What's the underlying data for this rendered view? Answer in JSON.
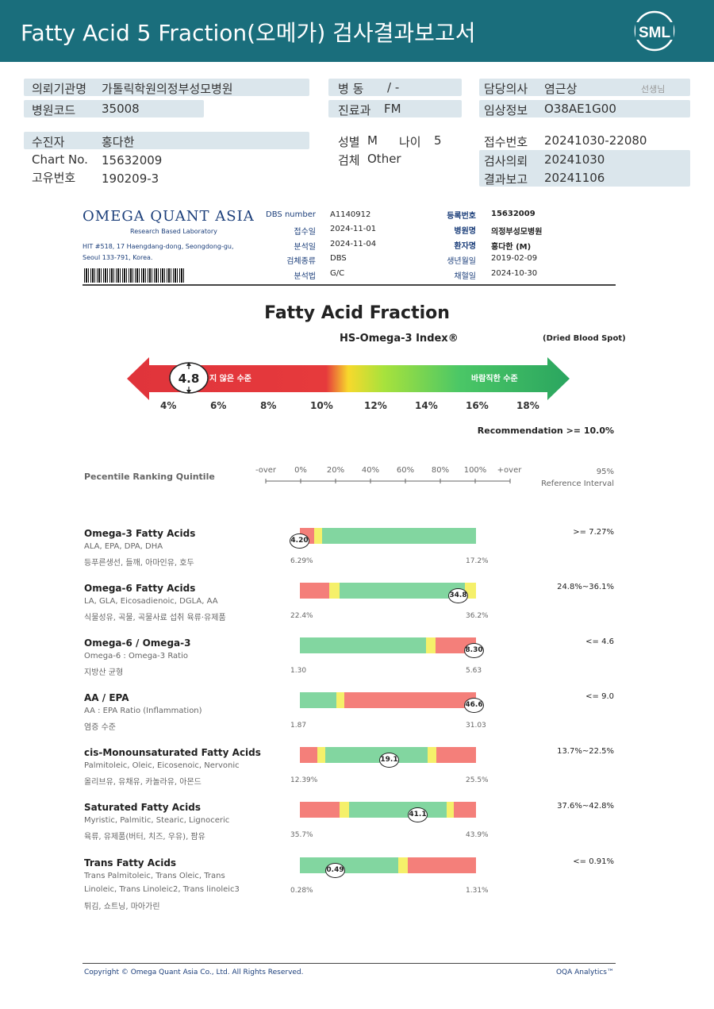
{
  "header": {
    "title": "Fatty Acid 5 Fraction(오메가) 검사결과보고서",
    "logo_text": "SML"
  },
  "info": {
    "hospital_label": "의뢰기관명",
    "hospital": "가톨릭학원의정부성모병원",
    "code_label": "병원코드",
    "code": "35008",
    "ward_label": "병  동",
    "ward": "/ -",
    "dept_label": "진료과",
    "dept": "FM",
    "doctor_label": "담당의사",
    "doctor": "염근상",
    "doctor_suffix": "선생님",
    "clinical_label": "임상정보",
    "clinical": "O38AE1G00",
    "patient_label": "수진자",
    "patient": "홍다한",
    "chart_label": "Chart No.",
    "chart": "15632009",
    "uid_label": "고유번호",
    "uid": "190209-3",
    "sex_label": "성별",
    "sex": "M",
    "age_label": "나이",
    "age": "5",
    "specimen_label": "검체",
    "specimen": "Other",
    "recv_label": "접수번호",
    "recv": "20241030-22080",
    "req_label": "검사의뢰",
    "req": "20241030",
    "report_label": "결과보고",
    "report": "20241106"
  },
  "oqa": {
    "logo": "OMEGA QUANT ASIA",
    "logo_sub": "Research Based Laboratory",
    "addr1": "HIT #518, 17 Haengdang-dong, Seongdong-gu,",
    "addr2": "Seoul 133-791, Korea.",
    "dbs_l": "DBS number",
    "dbs_v": "A1140912",
    "recv_l": "접수일",
    "recv_v": "2024-11-01",
    "anal_l": "분석일",
    "anal_v": "2024-11-04",
    "kind_l": "검체종류",
    "kind_v": "DBS",
    "meth_l": "분석법",
    "meth_v": "G/C",
    "reg_l": "등록번호",
    "reg_v": "15632009",
    "hosp_l": "병원명",
    "hosp_v": "의정부성모병원",
    "pat_l": "환자명",
    "pat_v": "홍다한 (M)",
    "dob_l": "생년월일",
    "dob_v": "2019-02-09",
    "draw_l": "채혈일",
    "draw_v": "2024-10-30"
  },
  "index": {
    "title": "Fatty Acid Fraction",
    "subtitle": "HS-Omega-3 Index®",
    "note": "(Dried Blood Spot)",
    "value": "4.8",
    "low_text": "지 않은 수준",
    "high_text": "바람직한 수준",
    "ticks": [
      "4%",
      "6%",
      "8%",
      "10%",
      "12%",
      "14%",
      "16%",
      "18%"
    ],
    "recommendation": "Recommendation  >= 10.0%"
  },
  "percentile": {
    "label": "Pecentile Ranking Quintile",
    "ticks": [
      "-over",
      "0%",
      "20%",
      "40%",
      "60%",
      "80%",
      "100%",
      "+over"
    ],
    "ref_line1": "95%",
    "ref_line2": "Reference Interval"
  },
  "rows": [
    {
      "name": "Omega-3 Fatty Acids",
      "sub1": "ALA, EPA, DPA, DHA",
      "sub2": "등푸른생선, 들깨, 아마인유, 호두",
      "min": "6.29%",
      "max": "17.2%",
      "ref": ">= 7.27%",
      "value": "4.20"
    },
    {
      "name": "Omega-6 Fatty Acids",
      "sub1": "LA, GLA, Eicosadienoic, DGLA, AA",
      "sub2": "식물성유, 곡물, 곡물사료 섭취 육류·유제품",
      "min": "22.4%",
      "max": "36.2%",
      "ref": "24.8%~36.1%",
      "value": "34.8"
    },
    {
      "name": "Omega-6 / Omega-3",
      "sub1": "Omega-6 : Omega-3 Ratio",
      "sub2": "지방산 균형",
      "min": "1.30",
      "max": "5.63",
      "ref": "<= 4.6",
      "value": "8.30"
    },
    {
      "name": "AA / EPA",
      "sub1": "AA : EPA Ratio (Inflammation)",
      "sub2": "염증 수준",
      "min": "1.87",
      "max": "31.03",
      "ref": "<= 9.0",
      "value": "46.6"
    },
    {
      "name": "cis-Monounsaturated Fatty Acids",
      "sub1": "Palmitoleic, Oleic, Eicosenoic, Nervonic",
      "sub2": "올리브유, 유채유, 카놀라유, 아몬드",
      "min": "12.39%",
      "max": "25.5%",
      "ref": "13.7%~22.5%",
      "value": "19.1"
    },
    {
      "name": "Saturated Fatty Acids",
      "sub1": "Myristic, Palmitic, Stearic, Lignoceric",
      "sub2": "육류, 유제품(버터, 치즈, 우유), 팜유",
      "min": "35.7%",
      "max": "43.9%",
      "ref": "37.6%~42.8%",
      "value": "41.1"
    },
    {
      "name": "Trans Fatty Acids",
      "sub1": "Trans Palmitoleic, Trans Oleic, Trans",
      "sub1b": "Linoleic, Trans Linoleic2, Trans linoleic3",
      "sub2": "튀김, 쇼트닝, 마아가린",
      "min": "0.28%",
      "max": "1.31%",
      "ref": "<= 0.91%",
      "value": "0.49"
    }
  ],
  "footer": {
    "left": "Copyright © Omega Quant Asia Co., Ltd.  All Rights Reserved.",
    "right": "OQA Analytics™"
  }
}
